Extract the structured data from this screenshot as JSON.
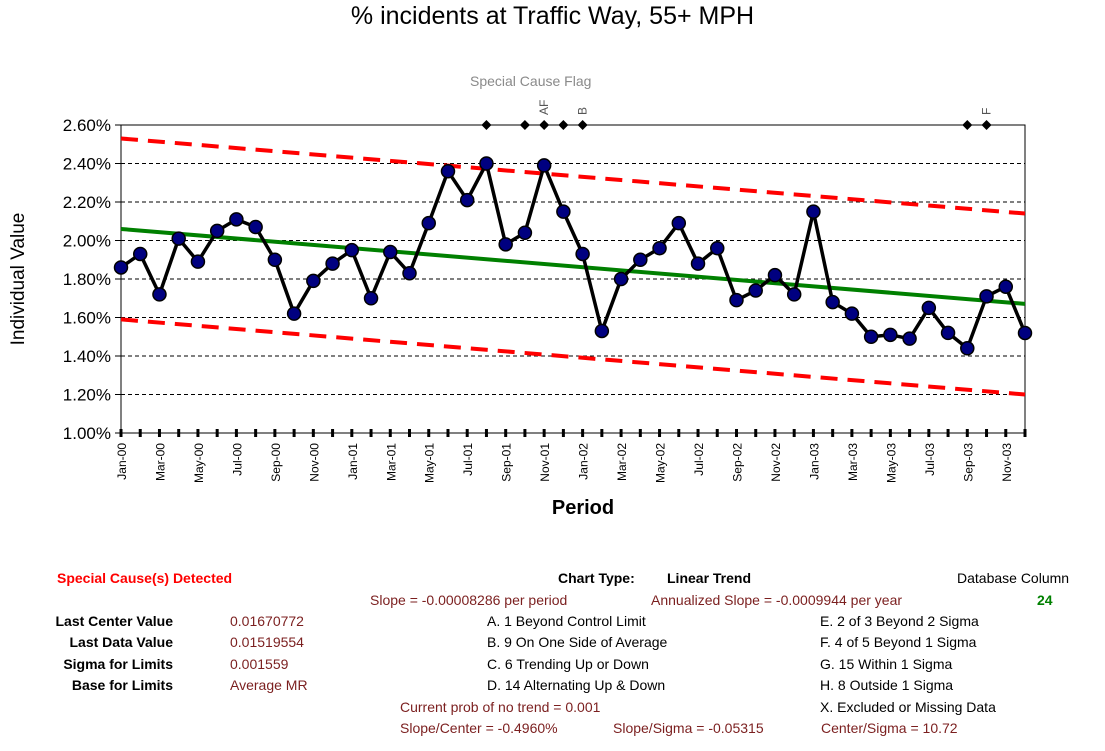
{
  "chart_data": {
    "type": "line",
    "title": "% incidents at Traffic Way, 55+ MPH",
    "flag_title": "Special Cause Flag",
    "xlabel": "Period",
    "ylabel": "Individual Value",
    "ylim": [
      0.01,
      0.026
    ],
    "y_ticks": [
      "1.00%",
      "1.20%",
      "1.40%",
      "1.60%",
      "1.80%",
      "2.00%",
      "2.20%",
      "2.40%",
      "2.60%"
    ],
    "y_tick_values": [
      0.01,
      0.012,
      0.014,
      0.016,
      0.018,
      0.02,
      0.022,
      0.024,
      0.026
    ],
    "x_tick_labels": [
      "Jan-00",
      "Mar-00",
      "May-00",
      "Jul-00",
      "Sep-00",
      "Nov-00",
      "Jan-01",
      "Mar-01",
      "May-01",
      "Jul-01",
      "Sep-01",
      "Nov-01",
      "Jan-02",
      "Mar-02",
      "May-02",
      "Jul-02",
      "Sep-02",
      "Nov-02",
      "Jan-03",
      "Mar-03",
      "May-03",
      "Jul-03",
      "Sep-03",
      "Nov-03"
    ],
    "periods": [
      "Jan-00",
      "Feb-00",
      "Mar-00",
      "Apr-00",
      "May-00",
      "Jun-00",
      "Jul-00",
      "Aug-00",
      "Sep-00",
      "Oct-00",
      "Nov-00",
      "Dec-00",
      "Jan-01",
      "Feb-01",
      "Mar-01",
      "Apr-01",
      "May-01",
      "Jun-01",
      "Jul-01",
      "Aug-01",
      "Sep-01",
      "Oct-01",
      "Nov-01",
      "Dec-01",
      "Jan-02",
      "Feb-02",
      "Mar-02",
      "Apr-02",
      "May-02",
      "Jun-02",
      "Jul-02",
      "Aug-02",
      "Sep-02",
      "Oct-02",
      "Nov-02",
      "Dec-02",
      "Jan-03",
      "Feb-03",
      "Mar-03",
      "Apr-03",
      "May-03",
      "Jun-03",
      "Jul-03",
      "Aug-03",
      "Sep-03",
      "Oct-03",
      "Nov-03",
      "Dec-03"
    ],
    "series": [
      {
        "name": "Individual Value",
        "color": "#000000",
        "marker_color": "#000080",
        "values": [
          0.0186,
          0.0193,
          0.0172,
          0.0201,
          0.0189,
          0.0205,
          0.0211,
          0.0207,
          0.019,
          0.0162,
          0.0179,
          0.0188,
          0.0195,
          0.017,
          0.0194,
          0.0183,
          0.0209,
          0.0236,
          0.0221,
          0.024,
          0.0198,
          0.0204,
          0.0239,
          0.0215,
          0.0193,
          0.0153,
          0.018,
          0.019,
          0.0196,
          0.0209,
          0.0188,
          0.0196,
          0.0169,
          0.0174,
          0.0182,
          0.0172,
          0.0215,
          0.0168,
          0.0162,
          0.015,
          0.0151,
          0.0149,
          0.0165,
          0.0152,
          0.0144,
          0.0171,
          0.0176,
          0.01519554
        ]
      },
      {
        "name": "Center Line",
        "color": "#008000",
        "start": 0.0206,
        "end": 0.01670772
      },
      {
        "name": "Upper Control Limit",
        "color": "#ff0000",
        "start": 0.0253,
        "end": 0.0214
      },
      {
        "name": "Lower Control Limit",
        "color": "#ff0000",
        "start": 0.0159,
        "end": 0.012
      }
    ],
    "flag_points": [
      19,
      21,
      22,
      23,
      24,
      44,
      45
    ],
    "flag_labels": [
      {
        "period": 22,
        "text": "AF"
      },
      {
        "period": 24,
        "text": "B"
      },
      {
        "period": 45,
        "text": "F"
      }
    ],
    "grid": true
  },
  "panel": {
    "special_cause": "Special Cause(s) Detected",
    "chart_type_label": "Chart Type:",
    "chart_type_value": "Linear Trend",
    "database_column_label": "Database Column",
    "database_column_value": "24",
    "slope": "Slope = -0.00008286 per period",
    "annualized_slope": "Annualized Slope = -0.0009944 per year",
    "stats": [
      {
        "label": "Last Center Value",
        "value": "0.01670772"
      },
      {
        "label": "Last Data Value",
        "value": "0.01519554"
      },
      {
        "label": "Sigma for Limits",
        "value": "0.001559"
      },
      {
        "label": "Base for Limits",
        "value": "Average MR"
      }
    ],
    "rules_left": [
      "A. 1 Beyond Control Limit",
      "B. 9 On One Side of Average",
      "C. 6 Trending Up or Down",
      "D. 14 Alternating  Up & Down"
    ],
    "rules_right": [
      "E. 2 of 3 Beyond 2 Sigma",
      "F. 4 of 5 Beyond 1 Sigma",
      "G. 15 Within 1 Sigma",
      "H. 8 Outside 1 Sigma",
      "X.  Excluded or Missing Data"
    ],
    "prob_no_trend": "Current prob of no trend = 0.001",
    "slope_center": "Slope/Center = -0.4960%",
    "slope_sigma": "Slope/Sigma = -0.05315",
    "center_sigma": "Center/Sigma = 10.72"
  }
}
